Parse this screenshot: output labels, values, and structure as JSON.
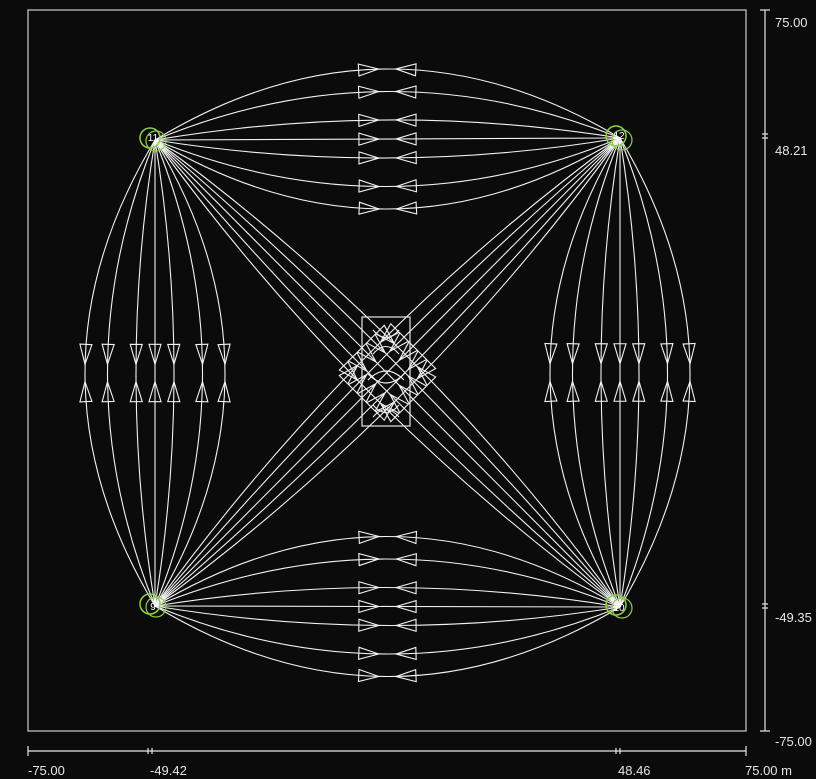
{
  "diagram": {
    "background_color": "#0b0b0b",
    "line_color": "#f2f2f2",
    "node_ring_color": "#8fcf4a",
    "nodes": [
      {
        "id": "11",
        "label": "11"
      },
      {
        "id": "12",
        "label": "12"
      },
      {
        "id": "9",
        "label": "9"
      },
      {
        "id": "10",
        "label": "10"
      }
    ],
    "center_box": true
  },
  "x_scale": {
    "labels": [
      "-75.00",
      "-49.42",
      "48.46",
      "75.00 m"
    ]
  },
  "y_scale": {
    "labels": [
      "75.00",
      "48.21",
      "-49.35",
      "-75.00"
    ]
  }
}
